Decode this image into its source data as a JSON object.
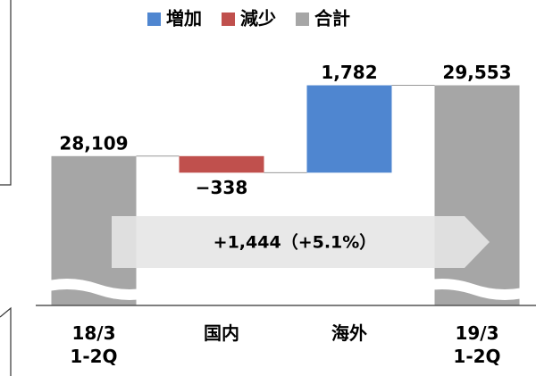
{
  "chart_data": {
    "type": "waterfall",
    "categories": [
      "18/3\n1-2Q",
      "国内",
      "海外",
      "19/3\n1-2Q"
    ],
    "series": [
      {
        "name": "増加",
        "color": "#4f86d0",
        "values": [
          null,
          null,
          1782,
          null
        ],
        "value_labels": [
          null,
          null,
          "1,782",
          null
        ]
      },
      {
        "name": "減少",
        "color": "#c0504d",
        "values": [
          null,
          -338,
          null,
          null
        ],
        "value_labels": [
          null,
          "−338",
          null,
          null
        ]
      },
      {
        "name": "合計",
        "color": "#a6a6a6",
        "is_total": true,
        "values": [
          28109,
          null,
          null,
          29553
        ],
        "value_labels": [
          "28,109",
          null,
          null,
          "29,553"
        ]
      }
    ],
    "ylim": [
      25100,
      30200
    ],
    "annotation": "+1,444（+5.1%）"
  }
}
